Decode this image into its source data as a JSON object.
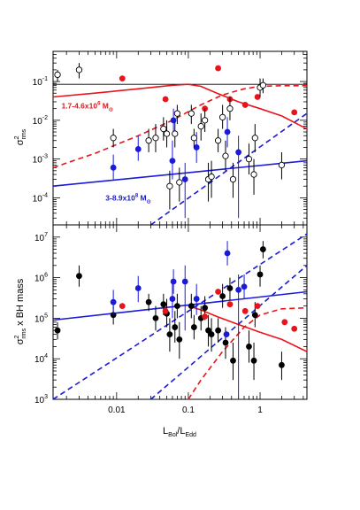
{
  "chart_data": [
    {
      "type": "scatter",
      "panel": "top",
      "xscale": "log",
      "yscale": "log",
      "xlim": [
        0.0013,
        4.5
      ],
      "ylim": [
        2e-05,
        0.6
      ],
      "ylabel_main": "σ",
      "ylabel_sup": "2",
      "ylabel_sub": "rms",
      "x_ticks": [
        0.01,
        0.1,
        1
      ],
      "x_tick_labels": [],
      "y_ticks": [
        0.0001,
        0.001,
        0.01,
        0.1
      ],
      "y_tick_labels": [
        {
          "base": "10",
          "exp": "-4"
        },
        {
          "base": "10",
          "exp": "-3"
        },
        {
          "base": "10",
          "exp": "-2"
        },
        {
          "base": "10",
          "exp": "-1"
        }
      ],
      "annotations": [
        {
          "text_main": "1.7-4.6x10",
          "text_sup": "6",
          "text_tail": " M",
          "text_sub": "⊙",
          "color": "#e8141c",
          "x": 0.0017,
          "y": 0.02
        },
        {
          "text_main": "3-8.9x10",
          "text_sup": "8",
          "text_tail": " M",
          "text_sub": "⊙",
          "color": "#1a1ad8",
          "x": 0.007,
          "y": 8.5e-05
        }
      ],
      "series": [
        {
          "color": "#1a1ad8",
          "marker": "filled",
          "points": [
            {
              "x": 0.009,
              "y": 0.0006,
              "ylo": 0.0003,
              "yhi": 0.0013
            },
            {
              "x": 0.02,
              "y": 0.0018,
              "ylo": 0.0009,
              "yhi": 0.004
            },
            {
              "x": 0.06,
              "y": 0.0009,
              "ylo": 0.0003,
              "yhi": 0.003
            },
            {
              "x": 0.062,
              "y": 0.01,
              "ylo": 0.005,
              "yhi": 0.02
            },
            {
              "x": 0.09,
              "y": 0.0003,
              "ylo": 3e-05,
              "yhi": 0.0008
            },
            {
              "x": 0.13,
              "y": 0.002,
              "ylo": 0.0008,
              "yhi": 0.005
            },
            {
              "x": 0.35,
              "y": 0.005,
              "ylo": 0.002,
              "yhi": 0.012
            },
            {
              "x": 0.5,
              "y": 0.0015,
              "ylo": 3e-05,
              "yhi": 0.004
            }
          ]
        },
        {
          "color": "#e8141c",
          "marker": "filled",
          "points": [
            {
              "x": 0.012,
              "y": 0.12,
              "ylo": 0.12,
              "yhi": 0.12
            },
            {
              "x": 0.048,
              "y": 0.035,
              "ylo": 0.035,
              "yhi": 0.035
            },
            {
              "x": 0.17,
              "y": 0.02,
              "ylo": 0.02,
              "yhi": 0.02
            },
            {
              "x": 0.26,
              "y": 0.22,
              "ylo": 0.22,
              "yhi": 0.22
            },
            {
              "x": 0.38,
              "y": 0.035,
              "ylo": 0.035,
              "yhi": 0.035
            },
            {
              "x": 0.62,
              "y": 0.025,
              "ylo": 0.025,
              "yhi": 0.025
            },
            {
              "x": 0.92,
              "y": 0.04,
              "ylo": 0.04,
              "yhi": 0.04
            },
            {
              "x": 3.0,
              "y": 0.016,
              "ylo": 0.016,
              "yhi": 0.016
            }
          ]
        },
        {
          "color": "#000000",
          "marker": "open",
          "points": [
            {
              "x": 0.0015,
              "y": 0.15,
              "ylo": 0.1,
              "yhi": 0.2
            },
            {
              "x": 0.003,
              "y": 0.2,
              "ylo": 0.12,
              "yhi": 0.3
            },
            {
              "x": 0.009,
              "y": 0.0035,
              "ylo": 0.002,
              "yhi": 0.006
            },
            {
              "x": 0.028,
              "y": 0.003,
              "ylo": 0.0015,
              "yhi": 0.006
            },
            {
              "x": 0.035,
              "y": 0.0035,
              "ylo": 0.0015,
              "yhi": 0.008
            },
            {
              "x": 0.045,
              "y": 0.006,
              "ylo": 0.003,
              "yhi": 0.012
            },
            {
              "x": 0.05,
              "y": 0.0045,
              "ylo": 0.002,
              "yhi": 0.01
            },
            {
              "x": 0.055,
              "y": 0.0002,
              "ylo": 5e-05,
              "yhi": 0.0005
            },
            {
              "x": 0.065,
              "y": 0.0045,
              "ylo": 0.002,
              "yhi": 0.009
            },
            {
              "x": 0.07,
              "y": 0.015,
              "ylo": 0.008,
              "yhi": 0.025
            },
            {
              "x": 0.075,
              "y": 0.00025,
              "ylo": 8e-05,
              "yhi": 0.0006
            },
            {
              "x": 0.11,
              "y": 0.015,
              "ylo": 0.008,
              "yhi": 0.025
            },
            {
              "x": 0.12,
              "y": 0.0035,
              "ylo": 0.002,
              "yhi": 0.006
            },
            {
              "x": 0.15,
              "y": 0.007,
              "ylo": 0.003,
              "yhi": 0.015
            },
            {
              "x": 0.17,
              "y": 0.01,
              "ylo": 0.005,
              "yhi": 0.02
            },
            {
              "x": 0.19,
              "y": 0.0003,
              "ylo": 8e-05,
              "yhi": 0.0008
            },
            {
              "x": 0.21,
              "y": 0.00035,
              "ylo": 0.0001,
              "yhi": 0.0009
            },
            {
              "x": 0.26,
              "y": 0.003,
              "ylo": 0.0015,
              "yhi": 0.006
            },
            {
              "x": 0.3,
              "y": 0.012,
              "ylo": 0.006,
              "yhi": 0.025
            },
            {
              "x": 0.33,
              "y": 0.0012,
              "ylo": 0.0005,
              "yhi": 0.003
            },
            {
              "x": 0.38,
              "y": 0.02,
              "ylo": 0.01,
              "yhi": 0.04
            },
            {
              "x": 0.42,
              "y": 0.0003,
              "ylo": 0.0001,
              "yhi": 0.0008
            },
            {
              "x": 0.7,
              "y": 0.001,
              "ylo": 0.0004,
              "yhi": 0.0025
            },
            {
              "x": 0.82,
              "y": 0.0004,
              "ylo": 0.00012,
              "yhi": 0.001
            },
            {
              "x": 0.85,
              "y": 0.0035,
              "ylo": 0.0015,
              "yhi": 0.008
            },
            {
              "x": 1.0,
              "y": 0.07,
              "ylo": 0.04,
              "yhi": 0.12
            },
            {
              "x": 1.1,
              "y": 0.08,
              "ylo": 0.05,
              "yhi": 0.12
            },
            {
              "x": 2.0,
              "y": 0.0007,
              "ylo": 0.0003,
              "yhi": 0.0015
            }
          ]
        }
      ],
      "curves": [
        {
          "color": "#000000",
          "style": "solid",
          "x": [
            0.0013,
            4.5
          ],
          "y": [
            0.085,
            0.085
          ]
        },
        {
          "color": "#e8141c",
          "style": "solid",
          "x": [
            0.0013,
            0.005,
            0.02,
            0.06,
            0.1,
            0.15,
            0.25,
            0.5,
            1,
            2,
            4.5
          ],
          "y": [
            0.04,
            0.05,
            0.065,
            0.08,
            0.085,
            0.075,
            0.05,
            0.03,
            0.02,
            0.013,
            0.006
          ]
        },
        {
          "color": "#e8141c",
          "style": "dashed",
          "x": [
            0.0013,
            0.005,
            0.02,
            0.06,
            0.15,
            0.3,
            0.6,
            1,
            2,
            4.5
          ],
          "y": [
            0.0006,
            0.0014,
            0.004,
            0.01,
            0.025,
            0.045,
            0.065,
            0.075,
            0.078,
            0.078
          ]
        },
        {
          "color": "#1a1ad8",
          "style": "solid",
          "x": [
            0.0013,
            4.5
          ],
          "y": [
            0.0002,
            0.0009
          ]
        },
        {
          "color": "#1a1ad8",
          "style": "dashed",
          "x": [
            0.03,
            4.5
          ],
          "y": [
            2e-05,
            0.015
          ]
        }
      ]
    },
    {
      "type": "scatter",
      "panel": "bottom",
      "xscale": "log",
      "yscale": "log",
      "xlim": [
        0.0013,
        4.5
      ],
      "ylim": [
        1000,
        20000000
      ],
      "ylabel_main": "σ",
      "ylabel_sup": "2",
      "ylabel_sub": "rms",
      "ylabel_tail": " x BH mass",
      "xlabel_main": "L",
      "xlabel_sub1": "Bol",
      "xlabel_mid": "/L",
      "xlabel_sub2": "Edd",
      "x_ticks": [
        0.01,
        0.1,
        1
      ],
      "x_tick_labels": [
        "0.01",
        "0.1",
        "1"
      ],
      "y_ticks": [
        1000,
        10000,
        100000,
        1000000,
        10000000
      ],
      "y_tick_labels": [
        {
          "base": "10",
          "exp": "3"
        },
        {
          "base": "10",
          "exp": "4"
        },
        {
          "base": "10",
          "exp": "5"
        },
        {
          "base": "10",
          "exp": "6"
        },
        {
          "base": "10",
          "exp": "7"
        }
      ],
      "series": [
        {
          "color": "#000000",
          "marker": "filled",
          "points": [
            {
              "x": 0.0015,
              "y": 50000,
              "ylo": 30000,
              "yhi": 80000
            },
            {
              "x": 0.003,
              "y": 1100000,
              "ylo": 600000,
              "yhi": 2000000
            },
            {
              "x": 0.009,
              "y": 120000,
              "ylo": 70000,
              "yhi": 200000
            },
            {
              "x": 0.028,
              "y": 250000,
              "ylo": 150000,
              "yhi": 400000
            },
            {
              "x": 0.035,
              "y": 100000,
              "ylo": 50000,
              "yhi": 200000
            },
            {
              "x": 0.045,
              "y": 220000,
              "ylo": 120000,
              "yhi": 400000
            },
            {
              "x": 0.05,
              "y": 130000,
              "ylo": 60000,
              "yhi": 300000
            },
            {
              "x": 0.055,
              "y": 40000,
              "ylo": 15000,
              "yhi": 100000
            },
            {
              "x": 0.065,
              "y": 60000,
              "ylo": 25000,
              "yhi": 150000
            },
            {
              "x": 0.07,
              "y": 200000,
              "ylo": 100000,
              "yhi": 400000
            },
            {
              "x": 0.075,
              "y": 30000,
              "ylo": 10000,
              "yhi": 80000
            },
            {
              "x": 0.11,
              "y": 200000,
              "ylo": 100000,
              "yhi": 400000
            },
            {
              "x": 0.12,
              "y": 60000,
              "ylo": 30000,
              "yhi": 120000
            },
            {
              "x": 0.15,
              "y": 100000,
              "ylo": 50000,
              "yhi": 200000
            },
            {
              "x": 0.17,
              "y": 180000,
              "ylo": 90000,
              "yhi": 350000
            },
            {
              "x": 0.19,
              "y": 50000,
              "ylo": 20000,
              "yhi": 120000
            },
            {
              "x": 0.21,
              "y": 40000,
              "ylo": 15000,
              "yhi": 100000
            },
            {
              "x": 0.26,
              "y": 50000,
              "ylo": 25000,
              "yhi": 100000
            },
            {
              "x": 0.3,
              "y": 350000,
              "ylo": 180000,
              "yhi": 700000
            },
            {
              "x": 0.33,
              "y": 25000,
              "ylo": 10000,
              "yhi": 60000
            },
            {
              "x": 0.38,
              "y": 550000,
              "ylo": 280000,
              "yhi": 1000000
            },
            {
              "x": 0.42,
              "y": 9000,
              "ylo": 3000,
              "yhi": 25000
            },
            {
              "x": 0.7,
              "y": 20000,
              "ylo": 8000,
              "yhi": 50000
            },
            {
              "x": 0.82,
              "y": 9000,
              "ylo": 3000,
              "yhi": 25000
            },
            {
              "x": 0.85,
              "y": 120000,
              "ylo": 60000,
              "yhi": 250000
            },
            {
              "x": 1.0,
              "y": 1200000,
              "ylo": 600000,
              "yhi": 2000000
            },
            {
              "x": 1.1,
              "y": 5000000,
              "ylo": 3000000,
              "yhi": 8000000
            },
            {
              "x": 2.0,
              "y": 7000,
              "ylo": 3000,
              "yhi": 15000
            }
          ]
        },
        {
          "color": "#1a1ad8",
          "marker": "filled",
          "points": [
            {
              "x": 0.009,
              "y": 250000,
              "ylo": 120000,
              "yhi": 500000
            },
            {
              "x": 0.02,
              "y": 550000,
              "ylo": 250000,
              "yhi": 1100000
            },
            {
              "x": 0.06,
              "y": 300000,
              "ylo": 100000,
              "yhi": 900000
            },
            {
              "x": 0.062,
              "y": 800000,
              "ylo": 400000,
              "yhi": 1600000
            },
            {
              "x": 0.09,
              "y": 800000,
              "ylo": 50000,
              "yhi": 2000000
            },
            {
              "x": 0.13,
              "y": 300000,
              "ylo": 120000,
              "yhi": 700000
            },
            {
              "x": 0.35,
              "y": 4000000,
              "ylo": 2000000,
              "yhi": 8000000
            },
            {
              "x": 0.5,
              "y": 500000,
              "ylo": 1000,
              "yhi": 1200000
            },
            {
              "x": 0.6,
              "y": 600000,
              "ylo": 300000,
              "yhi": 1200000
            },
            {
              "x": 0.34,
              "y": 40000,
              "ylo": 40000,
              "yhi": 40000
            }
          ]
        },
        {
          "color": "#e8141c",
          "marker": "filled",
          "points": [
            {
              "x": 0.012,
              "y": 200000,
              "ylo": 200000,
              "yhi": 200000
            },
            {
              "x": 0.048,
              "y": 150000,
              "ylo": 150000,
              "yhi": 150000
            },
            {
              "x": 0.17,
              "y": 110000,
              "ylo": 110000,
              "yhi": 110000
            },
            {
              "x": 0.26,
              "y": 450000,
              "ylo": 450000,
              "yhi": 450000
            },
            {
              "x": 0.38,
              "y": 220000,
              "ylo": 220000,
              "yhi": 220000
            },
            {
              "x": 0.62,
              "y": 150000,
              "ylo": 150000,
              "yhi": 150000
            },
            {
              "x": 0.92,
              "y": 200000,
              "ylo": 200000,
              "yhi": 200000
            },
            {
              "x": 2.2,
              "y": 80000,
              "ylo": 80000,
              "yhi": 80000
            },
            {
              "x": 3.0,
              "y": 55000,
              "ylo": 55000,
              "yhi": 55000
            }
          ]
        }
      ],
      "curves": [
        {
          "color": "#1a1ad8",
          "style": "solid",
          "x": [
            0.0013,
            4.5
          ],
          "y": [
            90000,
            450000
          ]
        },
        {
          "color": "#1a1ad8",
          "style": "dashed",
          "x": [
            0.0013,
            4.5
          ],
          "y": [
            1000,
            12000000
          ]
        },
        {
          "color": "#1a1ad8",
          "style": "dashed",
          "x": [
            0.03,
            4.5
          ],
          "y": [
            1000,
            2000000
          ]
        },
        {
          "color": "#e8141c",
          "style": "solid",
          "x": [
            0.1,
            0.15,
            0.25,
            0.5,
            1,
            2,
            4.5
          ],
          "y": [
            200000,
            160000,
            110000,
            70000,
            45000,
            30000,
            15000
          ]
        },
        {
          "color": "#e8141c",
          "style": "dashed",
          "x": [
            0.1,
            0.15,
            0.3,
            0.6,
            1,
            2,
            4.5
          ],
          "y": [
            1000,
            3000,
            15000,
            60000,
            120000,
            170000,
            180000
          ]
        }
      ]
    }
  ]
}
